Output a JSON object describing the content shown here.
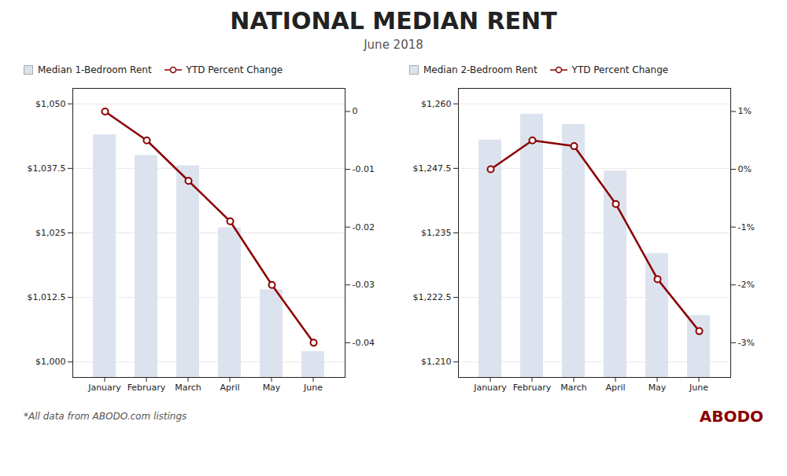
{
  "title": "NATIONAL MEDIAN RENT",
  "subtitle": "June 2018",
  "annotations": [
    "*All data from ABODO.com listings",
    "ABODO"
  ],
  "chart_data": [
    {
      "type": "bar",
      "categories": [
        "January",
        "February",
        "March",
        "April",
        "May",
        "June"
      ],
      "series": [
        {
          "name": "Median 1-Bedroom Rent",
          "type": "bar",
          "color": "#dce3ee",
          "values": [
            1044,
            1040,
            1038,
            1026,
            1014,
            1002
          ]
        },
        {
          "name": "YTD Percent Change",
          "type": "line",
          "axis": "y2",
          "color": "#8b0000",
          "marker": "circle",
          "values": [
            0.0,
            -0.005,
            -0.012,
            -0.019,
            -0.03,
            -0.04
          ]
        }
      ],
      "ylim": [
        997,
        1053
      ],
      "yticks": [
        {
          "value": 1000,
          "label": "$1,000"
        },
        {
          "value": 1012.5,
          "label": "$1,012.5"
        },
        {
          "value": 1025,
          "label": "$1,025"
        },
        {
          "value": 1037.5,
          "label": "$1,037.5"
        },
        {
          "value": 1050,
          "label": "$1,050"
        }
      ],
      "y2lim": [
        -0.046,
        0.004
      ],
      "y2ticks": [
        -0.04,
        -0.03,
        -0.02,
        -0.01,
        0
      ],
      "grid": true,
      "legend": "top left"
    },
    {
      "type": "bar",
      "categories": [
        "January",
        "February",
        "March",
        "April",
        "May",
        "June"
      ],
      "series": [
        {
          "name": "Median 2-Bedroom Rent",
          "type": "bar",
          "color": "#dce3ee",
          "values": [
            1253,
            1258,
            1256,
            1247,
            1231,
            1219
          ]
        },
        {
          "name": "YTD Percent Change",
          "type": "line",
          "axis": "y2",
          "color": "#8b0000",
          "marker": "circle",
          "values": [
            0.0,
            0.005,
            0.004,
            -0.006,
            -0.019,
            -0.028
          ]
        }
      ],
      "ylim": [
        1207,
        1263
      ],
      "yticks": [
        {
          "value": 1210,
          "label": "$1,210"
        },
        {
          "value": 1222.5,
          "label": "$1,222.5"
        },
        {
          "value": 1235,
          "label": "$1,235"
        },
        {
          "value": 1247.5,
          "label": "$1,247.5"
        },
        {
          "value": 1260,
          "label": "$1,260"
        }
      ],
      "y2lim": [
        -0.036,
        0.014
      ],
      "y2ticks": [
        {
          "value": -0.03,
          "label": "-3%"
        },
        {
          "value": -0.02,
          "label": "-2%"
        },
        {
          "value": -0.01,
          "label": "-1%"
        },
        {
          "value": 0.0,
          "label": "0%"
        },
        {
          "value": 0.01,
          "label": "1%"
        }
      ],
      "grid": true,
      "legend": "top left"
    }
  ]
}
